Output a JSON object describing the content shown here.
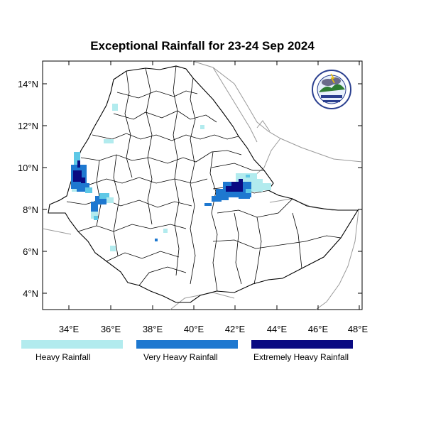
{
  "title": "Exceptional Rainfall for 23-24 Sep 2024",
  "axes": {
    "lat_ticks": [
      "14°N",
      "12°N",
      "10°N",
      "8°N",
      "6°N",
      "4°N"
    ],
    "lon_ticks": [
      "34°E",
      "36°E",
      "38°E",
      "40°E",
      "42°E",
      "44°E",
      "46°E",
      "48°E"
    ]
  },
  "legend": [
    {
      "label": "Heavy Rainfall",
      "color": "#b2ebee"
    },
    {
      "label": "Very Heavy Rainfall",
      "color": "#1e78d0"
    },
    {
      "label": "Extremely Heavy Rainfall",
      "color": "#0a0a82"
    }
  ],
  "colors": {
    "heavy": "#b2ebee",
    "very_heavy": "#1e78d0",
    "extreme": "#0a0a82",
    "heavy_mid": "#5ec8e6",
    "boundary": "#000000",
    "neighbor_boundary": "#9a9a9a"
  },
  "logo": {
    "icon": "ethiopian-meteorology-institute-logo"
  }
}
